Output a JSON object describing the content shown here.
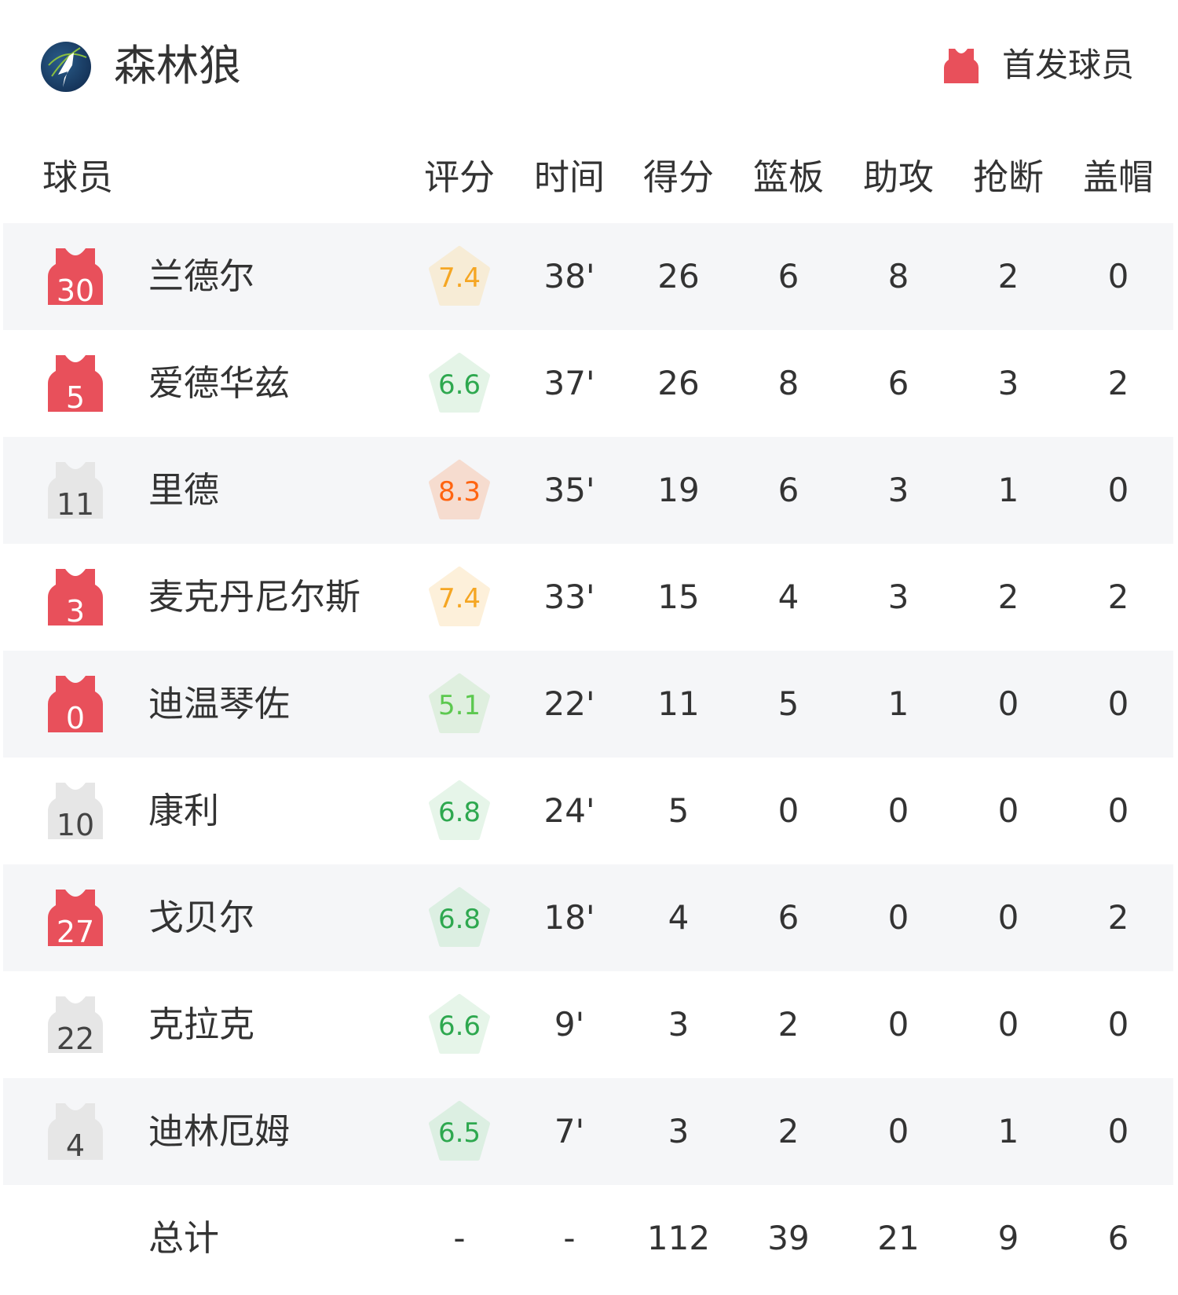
{
  "team": {
    "name": "森林狼",
    "logo": "timberwolves-logo"
  },
  "legend": {
    "label": "首发球员",
    "icon": "jersey-icon",
    "color": "#e8505b"
  },
  "columns": [
    "球员",
    "评分",
    "时间",
    "得分",
    "篮板",
    "助攻",
    "抢断",
    "盖帽"
  ],
  "colors": {
    "starter": "#e8505b",
    "bench": "#e6e6e6",
    "row_alt": "#f5f6f8"
  },
  "players": [
    {
      "number": "30",
      "starter": true,
      "name": "兰德尔",
      "rating": "7.4",
      "rating_color": "#f5a623",
      "rating_bg": "#f7ecd6",
      "min": "38'",
      "pts": "26",
      "reb": "6",
      "ast": "8",
      "stl": "2",
      "blk": "0"
    },
    {
      "number": "5",
      "starter": true,
      "name": "爱德华兹",
      "rating": "6.6",
      "rating_color": "#2ea84f",
      "rating_bg": "#e4f4e7",
      "min": "37'",
      "pts": "26",
      "reb": "8",
      "ast": "6",
      "stl": "3",
      "blk": "2"
    },
    {
      "number": "11",
      "starter": false,
      "name": "里德",
      "rating": "8.3",
      "rating_color": "#ff6410",
      "rating_bg": "#f6dccf",
      "min": "35'",
      "pts": "19",
      "reb": "6",
      "ast": "3",
      "stl": "1",
      "blk": "0"
    },
    {
      "number": "3",
      "starter": true,
      "name": "麦克丹尼尔斯",
      "rating": "7.4",
      "rating_color": "#f5a623",
      "rating_bg": "#fdf0da",
      "min": "33'",
      "pts": "15",
      "reb": "4",
      "ast": "3",
      "stl": "2",
      "blk": "2"
    },
    {
      "number": "0",
      "starter": true,
      "name": "迪温琴佐",
      "rating": "5.1",
      "rating_color": "#5cc84f",
      "rating_bg": "#dfefdf",
      "min": "22'",
      "pts": "11",
      "reb": "5",
      "ast": "1",
      "stl": "0",
      "blk": "0"
    },
    {
      "number": "10",
      "starter": false,
      "name": "康利",
      "rating": "6.8",
      "rating_color": "#2ea84f",
      "rating_bg": "#e6f5e9",
      "min": "24'",
      "pts": "5",
      "reb": "0",
      "ast": "0",
      "stl": "0",
      "blk": "0"
    },
    {
      "number": "27",
      "starter": true,
      "name": "戈贝尔",
      "rating": "6.8",
      "rating_color": "#2ea84f",
      "rating_bg": "#dcefe2",
      "min": "18'",
      "pts": "4",
      "reb": "6",
      "ast": "0",
      "stl": "0",
      "blk": "2"
    },
    {
      "number": "22",
      "starter": false,
      "name": "克拉克",
      "rating": "6.6",
      "rating_color": "#2ea84f",
      "rating_bg": "#e6f5e9",
      "min": "9'",
      "pts": "3",
      "reb": "2",
      "ast": "0",
      "stl": "0",
      "blk": "0"
    },
    {
      "number": "4",
      "starter": false,
      "name": "迪林厄姆",
      "rating": "6.5",
      "rating_color": "#2ea84f",
      "rating_bg": "#dcefe2",
      "min": "7'",
      "pts": "3",
      "reb": "2",
      "ast": "0",
      "stl": "1",
      "blk": "0"
    }
  ],
  "totals": {
    "label": "总计",
    "rating": "-",
    "min": "-",
    "pts": "112",
    "reb": "39",
    "ast": "21",
    "stl": "9",
    "blk": "6"
  }
}
